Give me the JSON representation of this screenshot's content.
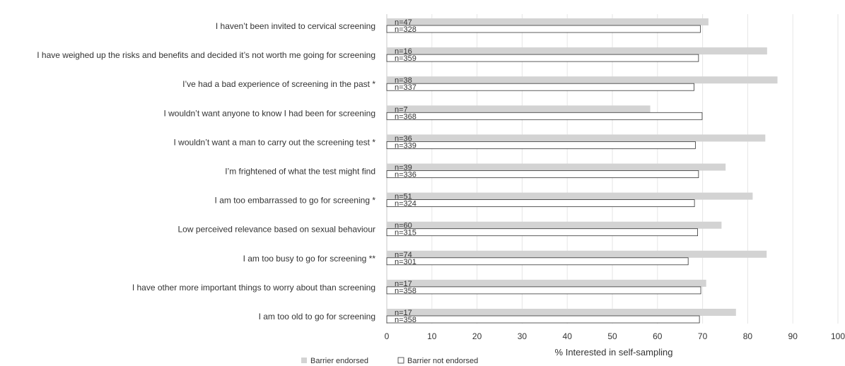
{
  "chart_data": {
    "type": "bar",
    "orientation": "horizontal",
    "xlabel": "% Interested in self-sampling",
    "xlim": [
      0,
      100
    ],
    "xticks": [
      "0",
      "10",
      "20",
      "30",
      "40",
      "50",
      "60",
      "70",
      "80",
      "90",
      "100"
    ],
    "grid": true,
    "legend_position": "bottom-left",
    "categories": [
      "I haven’t been invited to cervical screening",
      "I have weighed up the risks and benefits and decided it’s not worth me going for screening",
      "I’ve had a bad experience of screening in the past *",
      "I wouldn’t want anyone to know I had been for screening",
      "I wouldn’t want a man to carry out the screening test *",
      "I’m frightened of what the test might find",
      "I am too embarrassed to go for screening *",
      "Low perceived relevance based on sexual behaviour",
      "I am too busy to go for screening **",
      "I have other more important things to worry about than screening",
      "I am too old to go for screening"
    ],
    "series": [
      {
        "name": "Barrier endorsed",
        "color": "#d3d3d3",
        "values": [
          71.3,
          84.3,
          86.6,
          58.4,
          83.9,
          75.1,
          81.1,
          74.2,
          84.2,
          70.8,
          77.4
        ],
        "n_labels": [
          "n=47",
          "n=16",
          "n=38",
          "n=7",
          "n=36",
          "n=39",
          "n=51",
          "n=60",
          "n=74",
          "n=17",
          "n=17"
        ]
      },
      {
        "name": "Barrier not endorsed",
        "color": "#ffffff",
        "values": [
          69.5,
          69.1,
          68.1,
          69.9,
          68.4,
          69.1,
          68.2,
          68.9,
          66.8,
          69.6,
          69.3
        ],
        "n_labels": [
          "n=328",
          "n=359",
          "n=337",
          "n=368",
          "n=339",
          "n=336",
          "n=324",
          "n=315",
          "n=301",
          "n=358",
          "n=358"
        ]
      }
    ]
  }
}
